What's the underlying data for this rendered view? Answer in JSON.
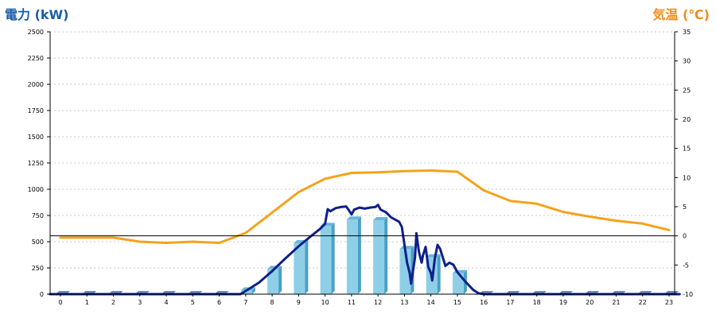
{
  "chart_data": {
    "type": "bar",
    "left_axis": {
      "label": "電力 (kW)",
      "min": 0,
      "max": 2500,
      "ticks": [
        "0",
        "250",
        "500",
        "750",
        "1000",
        "1250",
        "1500",
        "1750",
        "2000",
        "2250",
        "2500"
      ]
    },
    "right_axis": {
      "label": "気温 (℃)",
      "min": -10,
      "max": 35,
      "ticks": [
        "-10",
        "-5",
        "0",
        "5",
        "10",
        "15",
        "20",
        "25",
        "30",
        "35"
      ]
    },
    "categories": [
      "0",
      "1",
      "2",
      "3",
      "4",
      "5",
      "6",
      "7",
      "8",
      "9",
      "10",
      "11",
      "12",
      "13",
      "14",
      "15",
      "16",
      "17",
      "18",
      "19",
      "20",
      "21",
      "22",
      "23"
    ],
    "grid": true,
    "colors": {
      "bar_front": "#8ecfe8",
      "bar_side": "#4a9fc6",
      "bar_top": "#6bb6d8",
      "zero_bar": "#6e8bb4",
      "power_line": "#0f1f8c",
      "temp_line": "#f4a31c",
      "grid": "#c8c8c8"
    },
    "series": [
      {
        "kind": "bar",
        "axis": "left",
        "values": [
          0,
          0,
          0,
          0,
          0,
          0,
          0,
          35,
          240,
          485,
          650,
          710,
          705,
          430,
          350,
          200,
          0,
          0,
          0,
          0,
          0,
          0,
          0,
          0
        ]
      },
      {
        "kind": "line",
        "axis": "left",
        "points": [
          [
            -0.4,
            0
          ],
          [
            6.8,
            0
          ],
          [
            7.0,
            30
          ],
          [
            7.5,
            110
          ],
          [
            8.0,
            220
          ],
          [
            8.5,
            340
          ],
          [
            9.0,
            455
          ],
          [
            9.5,
            560
          ],
          [
            9.8,
            620
          ],
          [
            10.0,
            670
          ],
          [
            10.1,
            810
          ],
          [
            10.2,
            790
          ],
          [
            10.4,
            820
          ],
          [
            10.6,
            830
          ],
          [
            10.8,
            835
          ],
          [
            10.9,
            800
          ],
          [
            11.0,
            760
          ],
          [
            11.1,
            805
          ],
          [
            11.3,
            825
          ],
          [
            11.5,
            815
          ],
          [
            11.7,
            825
          ],
          [
            11.9,
            830
          ],
          [
            12.0,
            850
          ],
          [
            12.1,
            805
          ],
          [
            12.3,
            780
          ],
          [
            12.5,
            730
          ],
          [
            12.8,
            690
          ],
          [
            12.9,
            640
          ],
          [
            13.0,
            470
          ],
          [
            13.1,
            300
          ],
          [
            13.2,
            200
          ],
          [
            13.25,
            100
          ],
          [
            13.4,
            350
          ],
          [
            13.45,
            580
          ],
          [
            13.55,
            400
          ],
          [
            13.65,
            300
          ],
          [
            13.7,
            370
          ],
          [
            13.8,
            450
          ],
          [
            13.9,
            260
          ],
          [
            14.0,
            200
          ],
          [
            14.05,
            130
          ],
          [
            14.15,
            340
          ],
          [
            14.25,
            470
          ],
          [
            14.35,
            430
          ],
          [
            14.45,
            350
          ],
          [
            14.55,
            270
          ],
          [
            14.7,
            300
          ],
          [
            14.85,
            280
          ],
          [
            15.0,
            210
          ],
          [
            15.3,
            120
          ],
          [
            15.6,
            40
          ],
          [
            15.8,
            8
          ],
          [
            16.0,
            0
          ],
          [
            23.4,
            0
          ]
        ]
      },
      {
        "kind": "line",
        "axis": "right",
        "points": [
          [
            0,
            -0.3
          ],
          [
            1,
            -0.3
          ],
          [
            2,
            -0.3
          ],
          [
            3,
            -1.0
          ],
          [
            4,
            -1.2
          ],
          [
            5,
            -1.0
          ],
          [
            6,
            -1.2
          ],
          [
            7,
            0.5
          ],
          [
            8,
            4.0
          ],
          [
            9,
            7.5
          ],
          [
            10,
            9.8
          ],
          [
            11,
            10.8
          ],
          [
            12,
            10.9
          ],
          [
            13,
            11.1
          ],
          [
            14,
            11.2
          ],
          [
            15,
            11.0
          ],
          [
            16,
            7.8
          ],
          [
            17,
            6.0
          ],
          [
            18,
            5.5
          ],
          [
            19,
            4.1
          ],
          [
            20,
            3.3
          ],
          [
            21,
            2.6
          ],
          [
            22,
            2.1
          ],
          [
            23,
            1.0
          ]
        ]
      }
    ]
  }
}
